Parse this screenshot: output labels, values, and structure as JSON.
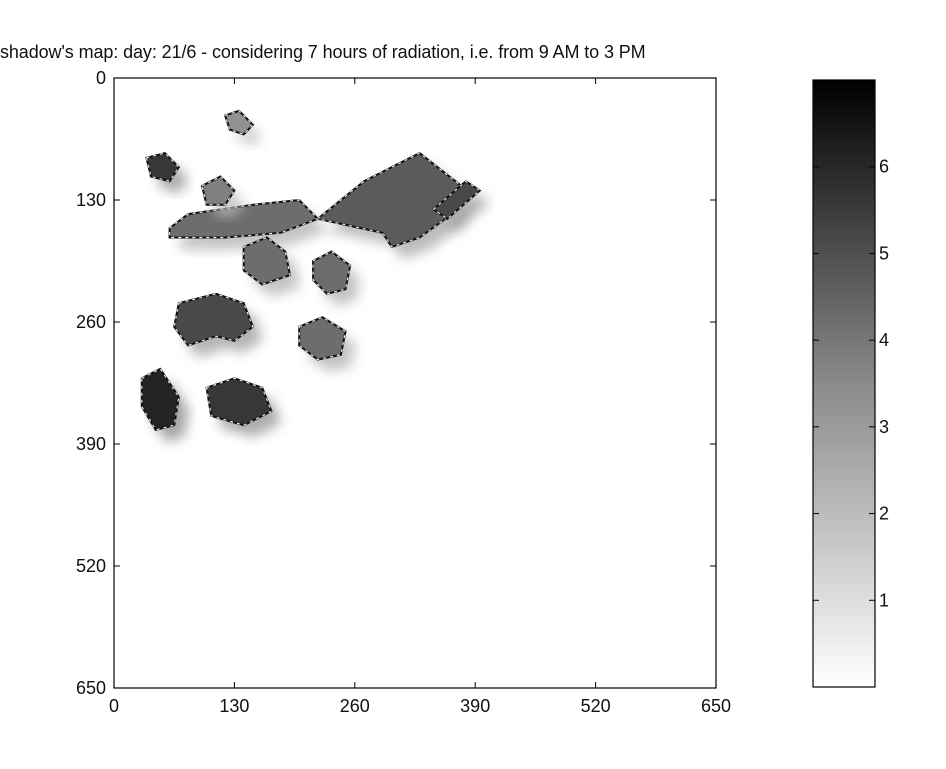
{
  "chart_data": {
    "type": "heatmap",
    "title": "shadow's map: day: 21/6 - considering 7 hours of radiation, i.e. from 9 AM to 3 PM",
    "xlabel": "",
    "ylabel": "",
    "xlim": [
      0,
      650
    ],
    "ylim": [
      0,
      650
    ],
    "y_direction": "top-down",
    "x_ticks": [
      0,
      130,
      260,
      390,
      520,
      650
    ],
    "y_ticks": [
      0,
      130,
      260,
      390,
      520,
      650
    ],
    "grid": false,
    "colormap": "gray (reversed: white = 0, black = max)",
    "colorbar": {
      "ticks": [
        1,
        2,
        3,
        4,
        5,
        6
      ],
      "range": [
        0,
        7
      ]
    },
    "buildings": [
      {
        "points": [
          [
            220,
            150
          ],
          [
            270,
            110
          ],
          [
            330,
            80
          ],
          [
            375,
            115
          ],
          [
            365,
            145
          ],
          [
            330,
            170
          ],
          [
            300,
            180
          ],
          [
            290,
            165
          ]
        ],
        "level": 4.5
      },
      {
        "points": [
          [
            345,
            140
          ],
          [
            380,
            110
          ],
          [
            395,
            120
          ],
          [
            360,
            150
          ]
        ],
        "level": 5
      },
      {
        "points": [
          [
            60,
            160
          ],
          [
            80,
            145
          ],
          [
            150,
            135
          ],
          [
            200,
            130
          ],
          [
            220,
            150
          ],
          [
            180,
            165
          ],
          [
            120,
            170
          ],
          [
            60,
            170
          ]
        ],
        "level": 4
      },
      {
        "points": [
          [
            70,
            240
          ],
          [
            110,
            230
          ],
          [
            140,
            240
          ],
          [
            150,
            265
          ],
          [
            130,
            280
          ],
          [
            110,
            275
          ],
          [
            80,
            285
          ],
          [
            65,
            265
          ]
        ],
        "level": 5
      },
      {
        "points": [
          [
            140,
            180
          ],
          [
            165,
            170
          ],
          [
            185,
            185
          ],
          [
            190,
            210
          ],
          [
            160,
            220
          ],
          [
            140,
            205
          ]
        ],
        "level": 4
      },
      {
        "points": [
          [
            30,
            320
          ],
          [
            50,
            310
          ],
          [
            70,
            340
          ],
          [
            65,
            370
          ],
          [
            45,
            375
          ],
          [
            30,
            350
          ]
        ],
        "level": 6
      },
      {
        "points": [
          [
            215,
            195
          ],
          [
            235,
            185
          ],
          [
            255,
            200
          ],
          [
            250,
            225
          ],
          [
            230,
            230
          ],
          [
            215,
            215
          ]
        ],
        "level": 4
      },
      {
        "points": [
          [
            95,
            115
          ],
          [
            115,
            105
          ],
          [
            130,
            120
          ],
          [
            120,
            135
          ],
          [
            100,
            135
          ]
        ],
        "level": 3.5
      },
      {
        "points": [
          [
            35,
            85
          ],
          [
            55,
            80
          ],
          [
            70,
            95
          ],
          [
            60,
            110
          ],
          [
            40,
            105
          ]
        ],
        "level": 5.5
      },
      {
        "points": [
          [
            200,
            265
          ],
          [
            225,
            255
          ],
          [
            250,
            270
          ],
          [
            245,
            295
          ],
          [
            220,
            300
          ],
          [
            200,
            285
          ]
        ],
        "level": 4
      },
      {
        "points": [
          [
            100,
            330
          ],
          [
            130,
            320
          ],
          [
            160,
            330
          ],
          [
            170,
            355
          ],
          [
            140,
            370
          ],
          [
            105,
            360
          ]
        ],
        "level": 5.5
      },
      {
        "points": [
          [
            120,
            40
          ],
          [
            135,
            35
          ],
          [
            150,
            50
          ],
          [
            140,
            60
          ],
          [
            125,
            55
          ]
        ],
        "level": 3
      }
    ]
  }
}
